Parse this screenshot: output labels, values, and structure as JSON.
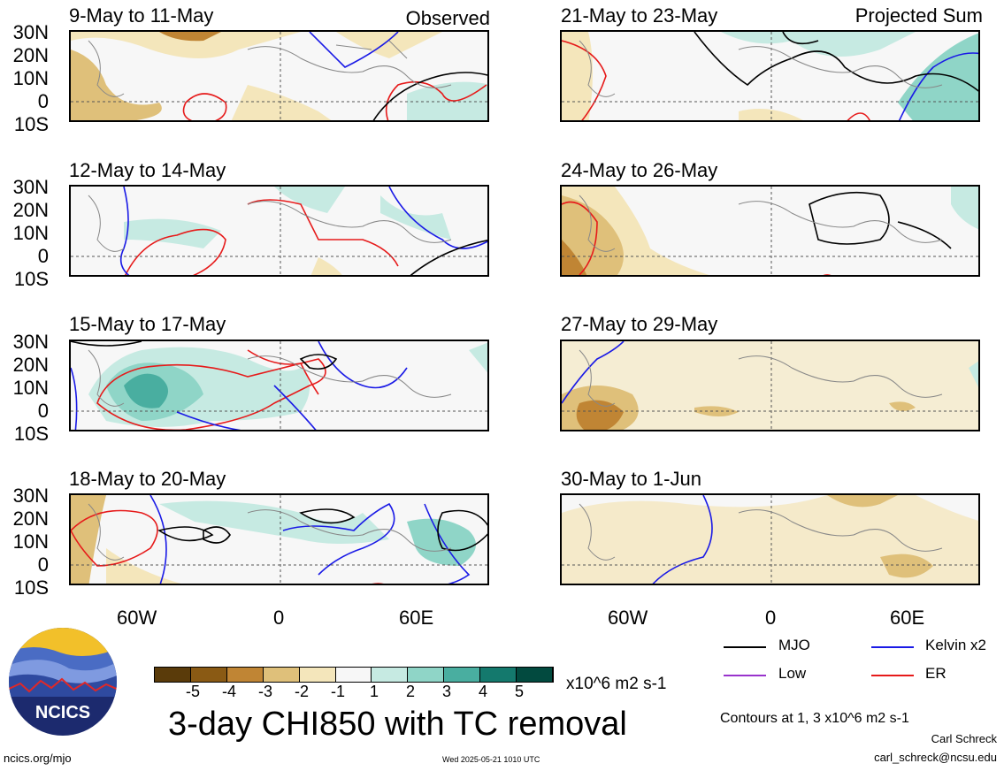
{
  "panels_left": [
    {
      "title": "9-May to 11-May",
      "corner": "Observed"
    },
    {
      "title": "12-May to 14-May",
      "corner": ""
    },
    {
      "title": "15-May to 17-May",
      "corner": ""
    },
    {
      "title": "18-May to 20-May",
      "corner": ""
    }
  ],
  "panels_right": [
    {
      "title": "21-May to 23-May",
      "corner": "Projected Sum"
    },
    {
      "title": "24-May to 26-May",
      "corner": ""
    },
    {
      "title": "27-May to 29-May",
      "corner": ""
    },
    {
      "title": "30-May to 1-Jun",
      "corner": ""
    }
  ],
  "lat_labels": [
    "30N",
    "20N",
    "10N",
    "0",
    "10S"
  ],
  "lon_labels": [
    "60W",
    "0",
    "60E"
  ],
  "colorbar": {
    "colors": [
      "#5a3b0a",
      "#8a5a14",
      "#c08534",
      "#dfc07a",
      "#f4e6bb",
      "#f7f7f7",
      "#c6eae2",
      "#8fd5c7",
      "#49aea0",
      "#14796d",
      "#024a3f"
    ],
    "ticks": [
      "-5",
      "-4",
      "-3",
      "-2",
      "-1",
      "1",
      "2",
      "3",
      "4",
      "5"
    ],
    "units": "x10^6 m2 s-1"
  },
  "main_title": "3-day CHI850 with TC removal",
  "legend": [
    {
      "label": "MJO",
      "color": "#000000"
    },
    {
      "label": "Kelvin x2",
      "color": "#1a1ae6"
    },
    {
      "label": "Low",
      "color": "#9933cc"
    },
    {
      "label": "ER",
      "color": "#e61a1a"
    }
  ],
  "contours_note": "Contours at 1, 3 x10^6 m2 s-1",
  "author": "Carl Schreck",
  "email": "carl_schreck@ncsu.edu",
  "url": "ncics.org/mjo",
  "timestamp": "Wed 2025-05-21 1010 UTC",
  "logo": {
    "text": "NCICS"
  }
}
